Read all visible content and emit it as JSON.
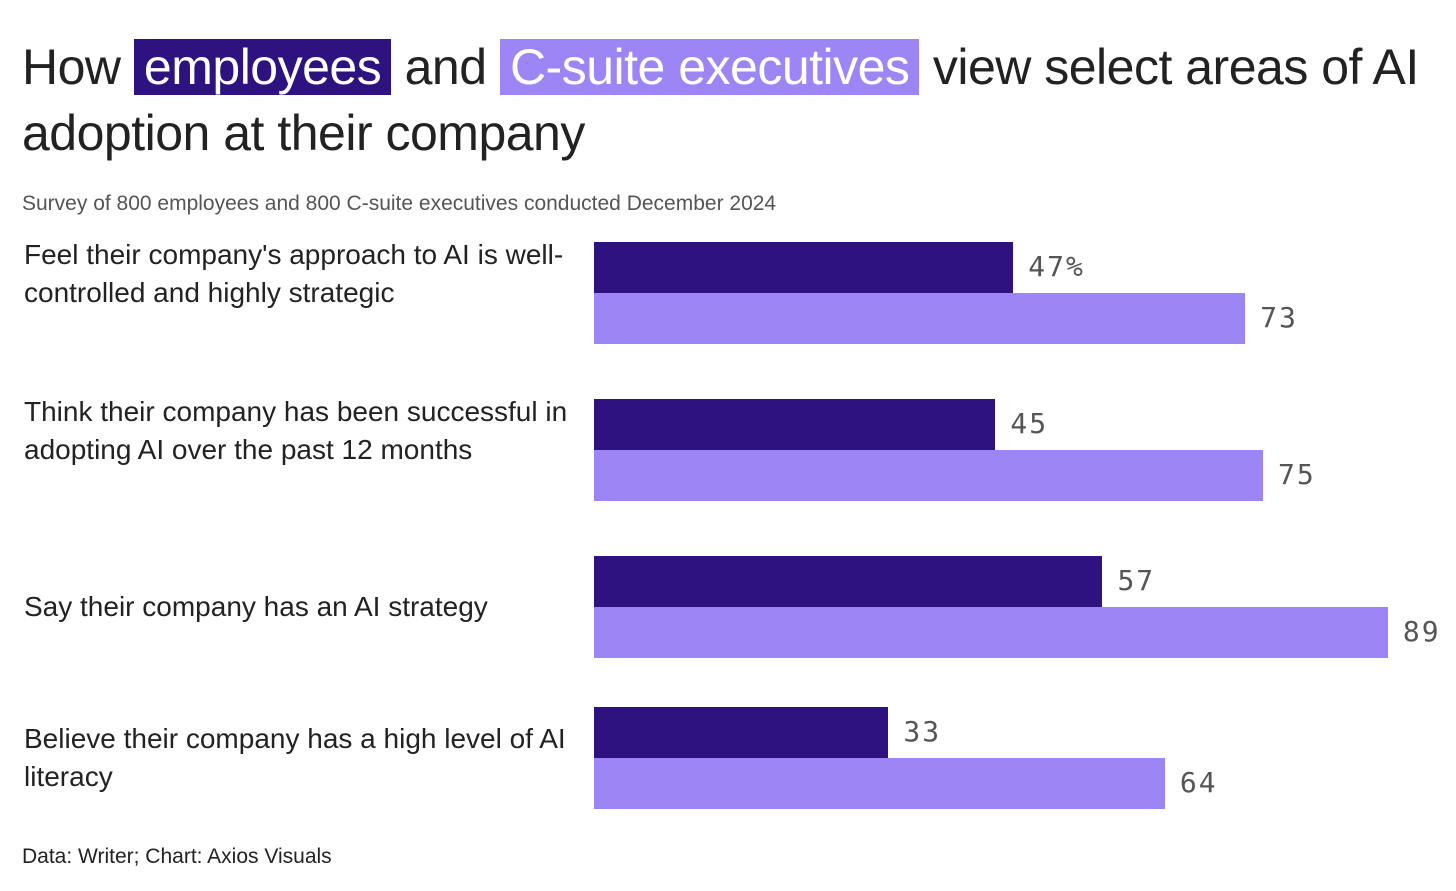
{
  "title": {
    "pre": "How ",
    "employees": "employees",
    "mid": " and ",
    "csuite": "C-suite executives",
    "post": " view select areas of AI adoption at their company"
  },
  "subtitle": "Survey of 800 employees and 800 C-suite executives conducted December 2024",
  "footer": "Data: Writer; Chart: Axios Visuals",
  "colors": {
    "employees": "#2e1280",
    "csuite": "#9d85f5"
  },
  "chart_data": {
    "type": "bar",
    "orientation": "horizontal",
    "unit": "%",
    "categories": [
      "Feel their company's approach to AI is well-controlled and highly strategic",
      "Think their company has been successful in adopting AI over the past 12 months",
      "Say their company has an AI strategy",
      "Believe their company has a high level of AI literacy"
    ],
    "series": [
      {
        "name": "employees",
        "values": [
          47,
          45,
          57,
          33
        ],
        "labels": [
          "47%",
          "45",
          "57",
          "33"
        ]
      },
      {
        "name": "C-suite executives",
        "values": [
          73,
          75,
          89,
          64
        ],
        "labels": [
          "73",
          "75",
          "89",
          "64"
        ]
      }
    ],
    "xlim": [
      0,
      100
    ],
    "grid": false
  }
}
